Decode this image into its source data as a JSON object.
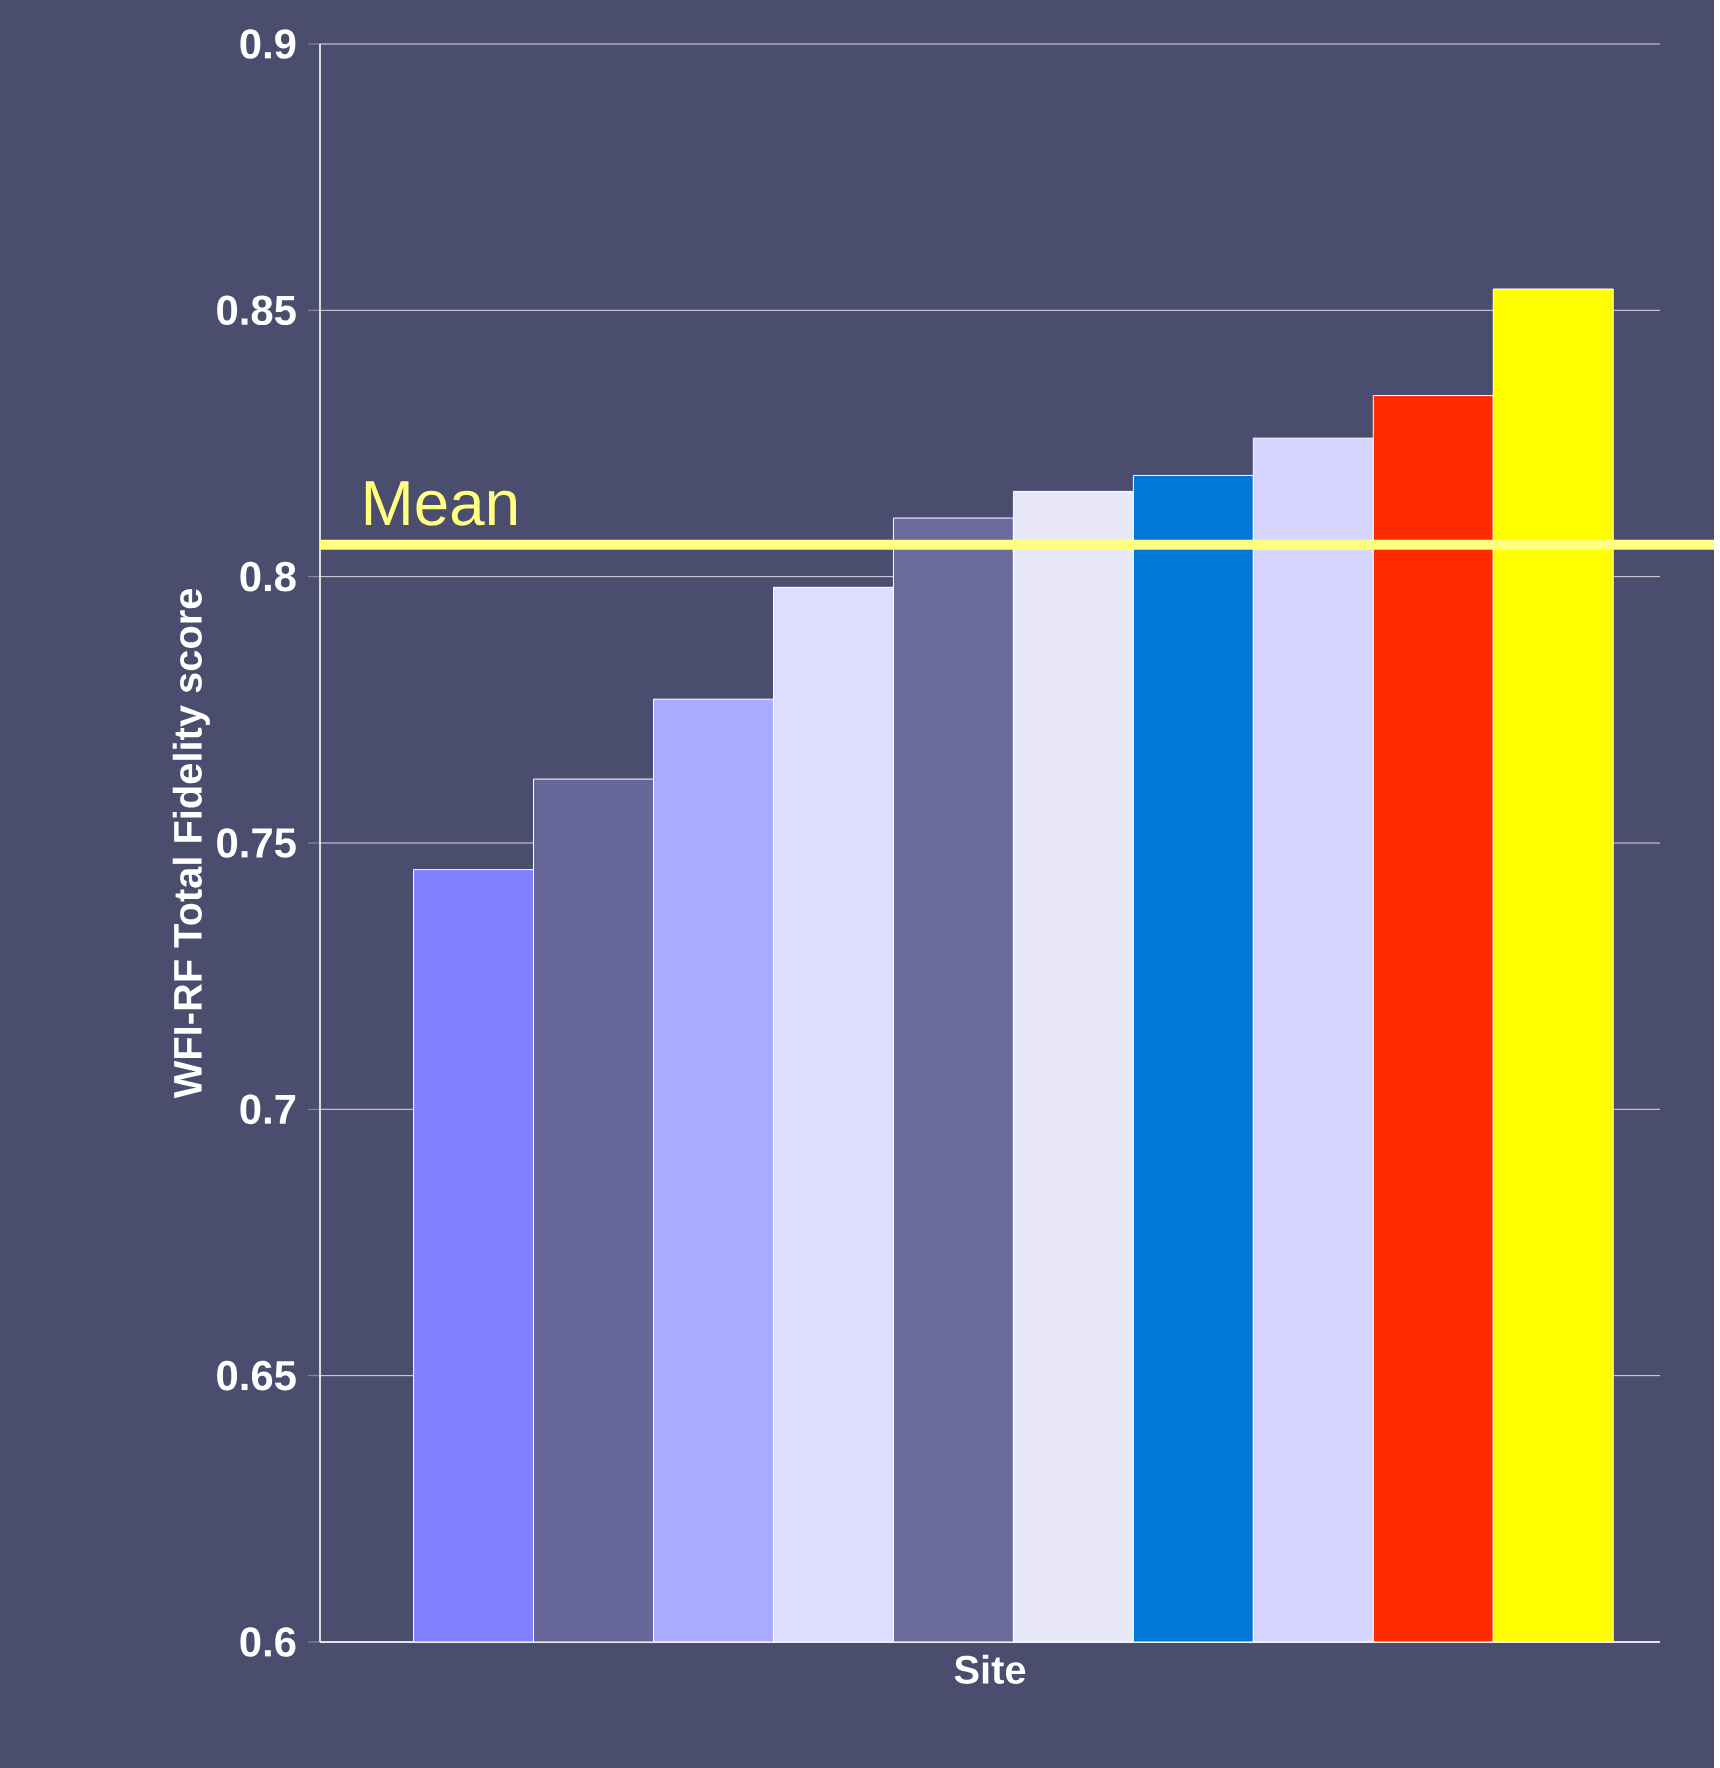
{
  "chart_data": {
    "type": "bar",
    "xlabel": "Site",
    "ylabel": "WFI-RF  Total Fidelity score",
    "categories": [
      null,
      null,
      null,
      null,
      null,
      null,
      null,
      null,
      null,
      null
    ],
    "values": [
      0.745,
      0.762,
      0.777,
      0.798,
      0.811,
      0.816,
      0.819,
      0.826,
      0.834,
      0.854
    ],
    "colors": [
      "#7f7fff",
      "#666699",
      "#aaaaff",
      "#ddddff",
      "#6b6b9b",
      "#e8e8f8",
      "#0078d7",
      "#d5d5ff",
      "#ff2a00",
      "#ffff00"
    ],
    "ylim": [
      0.6,
      0.9
    ],
    "yticks": [
      0.6,
      0.65,
      0.7,
      0.75,
      0.8,
      0.85,
      0.9
    ],
    "grid": "y",
    "ref_lines": [
      {
        "axis": "y",
        "value": 0.806,
        "label": "Mean",
        "color": "#ffff80"
      }
    ]
  }
}
